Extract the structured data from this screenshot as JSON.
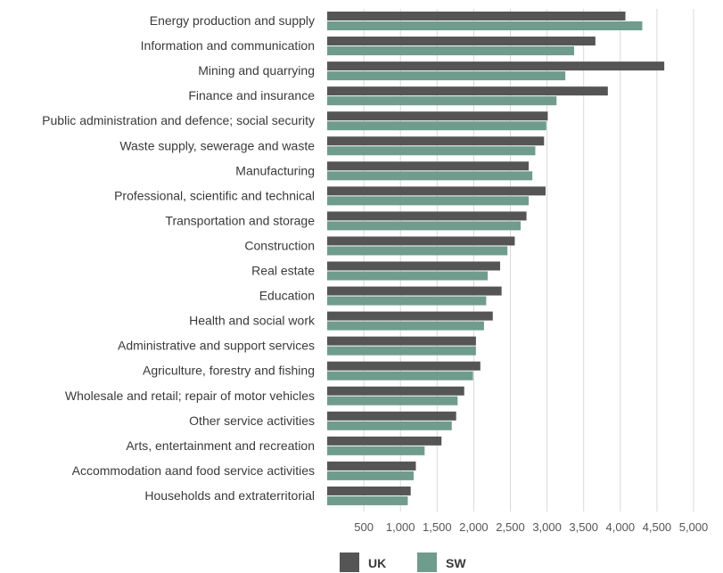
{
  "chart_data": {
    "type": "bar",
    "orientation": "horizontal",
    "categories": [
      "Energy production and supply",
      "Information and communication",
      "Mining and quarrying",
      "Finance and insurance",
      "Public administration and defence; social security",
      "Waste supply, sewerage and waste",
      "Manufacturing",
      "Professional, scientific and technical",
      "Transportation and storage",
      "Construction",
      "Real estate",
      "Education",
      "Health and social work",
      "Administrative and support services",
      "Agriculture, forestry and fishing",
      "Wholesale and retail; repair of motor vehicles",
      "Other service activities",
      "Arts, entertainment and recreation",
      "Accommodation aand food service activities",
      "Households and extraterritorial"
    ],
    "series": [
      {
        "name": "UK",
        "color": "#555555",
        "values": [
          4070,
          3660,
          4600,
          3830,
          3010,
          2960,
          2750,
          2980,
          2720,
          2560,
          2360,
          2380,
          2260,
          2030,
          2090,
          1870,
          1760,
          1560,
          1210,
          1140
        ]
      },
      {
        "name": "SW",
        "color": "#6f9c8d",
        "values": [
          4300,
          3370,
          3250,
          3130,
          2990,
          2840,
          2800,
          2750,
          2640,
          2460,
          2190,
          2170,
          2140,
          2030,
          1990,
          1780,
          1700,
          1330,
          1180,
          1100
        ]
      }
    ],
    "xlim": [
      0,
      5000
    ],
    "x_ticks": [
      "500",
      "1,000",
      "1,500",
      "2,000",
      "2,500",
      "3,000",
      "3,500",
      "4,000",
      "4,500",
      "5,000"
    ],
    "x_tick_values": [
      500,
      1000,
      1500,
      2000,
      2500,
      3000,
      3500,
      4000,
      4500,
      5000
    ],
    "grid": "vertical",
    "legend": "bottom-center"
  }
}
